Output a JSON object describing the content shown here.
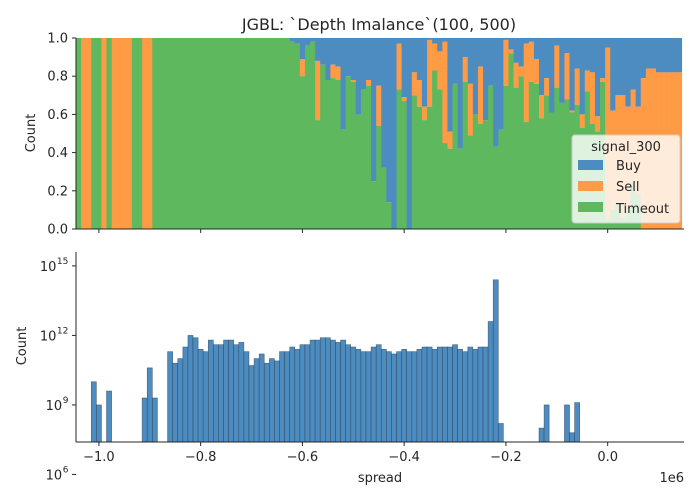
{
  "chart_data": [
    {
      "type": "bar",
      "title": "JGBL: `Depth Imalance`(100, 500)",
      "xlabel": "",
      "ylabel": "Count",
      "ylim": [
        0,
        1.0
      ],
      "yticks": [
        "0.0",
        "0.2",
        "0.4",
        "0.6",
        "0.8",
        "1.0"
      ],
      "stacked_fill": true,
      "legend": {
        "title": "signal_300",
        "placement": "right",
        "entries": [
          {
            "name": "Buy",
            "color": "#4c8cc0"
          },
          {
            "name": "Sell",
            "color": "#ff9a45"
          },
          {
            "name": "Timeout",
            "color": "#5eb85e"
          }
        ]
      },
      "bins": {
        "x_start": -1.045,
        "width": 0.01,
        "count": 119,
        "sell_and_timeout_top": [
          1,
          1,
          1,
          1,
          1,
          1,
          1,
          1,
          1,
          1,
          1,
          1,
          1,
          1,
          1,
          1,
          1,
          1,
          1,
          1,
          1,
          1,
          1,
          1,
          1,
          1,
          1,
          1,
          1,
          1,
          1,
          1,
          1,
          1,
          1,
          1,
          1,
          1,
          1,
          1,
          1,
          1,
          0.98,
          0.97,
          0.89,
          0.96,
          0.98,
          0.88,
          0.86,
          0.78,
          0.86,
          0.85,
          0.52,
          0.8,
          0.78,
          0.6,
          0.73,
          0.78,
          0.25,
          0.75,
          0.32,
          0.14,
          0.0,
          0.97,
          0.69,
          0.0,
          0.82,
          0.78,
          0.64,
          0.99,
          0.97,
          0.93,
          0.98,
          0.51,
          0.76,
          0.42,
          0.9,
          0.76,
          0.6,
          0.85,
          0.57,
          0.75,
          0.43,
          0.52,
          0.99,
          0.94,
          0.87,
          0.85,
          0.97,
          0.98,
          0.89,
          0.7,
          0.79,
          0.61,
          0.96,
          0.66,
          0.92,
          0.62,
          0.84,
          0.6,
          0.83,
          0.82,
          0.59,
          0.79,
          0.95,
          0.62,
          0.7,
          0.7,
          0.64,
          0.73,
          0.64,
          0.79,
          0.84,
          0.84,
          0.82,
          0.82,
          0.82,
          0.82,
          0.82,
          0.82,
          0.82,
          0.82,
          0.82
        ],
        "timeout_top": [
          1,
          0,
          0,
          1,
          1,
          0,
          1,
          0,
          0,
          0,
          0,
          1,
          1,
          0,
          0,
          1,
          1,
          1,
          1,
          1,
          1,
          1,
          1,
          1,
          1,
          1,
          1,
          1,
          1,
          1,
          1,
          1,
          1,
          1,
          1,
          1,
          1,
          1,
          1,
          1,
          1,
          1,
          1.0,
          1.0,
          0.8,
          1.0,
          1.0,
          0.57,
          1.0,
          1.0,
          0.79,
          0.78,
          1.0,
          0.8,
          0.77,
          0.8,
          0.85,
          0.75,
          0.34,
          0.54,
          0.78,
          0.14,
          0.0,
          0.73,
          0.67,
          0.0,
          0.7,
          0.64,
          0.57,
          0.64,
          0.83,
          0.73,
          0.45,
          0.42,
          0.77,
          0.62,
          0.77,
          0.49,
          0.72,
          0.55,
          0.57,
          0.81,
          0.77,
          0.6,
          0.75,
          0.92,
          0.74,
          0.8,
          0.56,
          0.77,
          0.76,
          0.58,
          0.7,
          0.64,
          0.74,
          0.85,
          0.68,
          0.61,
          0.65,
          0.53,
          0.72,
          0.55,
          0.51,
          0.77,
          0.05,
          0.1,
          0.13,
          0.06,
          0.11,
          0.24,
          0.18,
          0.0,
          0.0,
          0.0,
          0.0,
          0.0,
          0.0,
          0.0,
          0.0,
          0.0,
          0.0,
          0.0,
          0.0
        ]
      }
    },
    {
      "type": "bar",
      "title": "",
      "xlabel": "spread",
      "ylabel": "Count",
      "yscale": "log",
      "ylim_log10": [
        7.4,
        15.6
      ],
      "yticks": [
        {
          "base": "10",
          "exp": "6",
          "value": 6
        },
        {
          "base": "10",
          "exp": "9",
          "value": 9
        },
        {
          "base": "10",
          "exp": "12",
          "value": 12
        },
        {
          "base": "10",
          "exp": "15",
          "value": 15
        }
      ],
      "xticks": [
        "−1.0",
        "−0.8",
        "−0.6",
        "−0.4",
        "−0.2",
        "0.0"
      ],
      "xtick_values": [
        -1.0,
        -0.8,
        -0.6,
        -0.4,
        -0.2,
        0.0
      ],
      "xlim": [
        -1.045,
        0.15
      ],
      "x_offset_label": "1e6",
      "color": "#4c8cc0",
      "bins": {
        "x_start": -1.045,
        "width": 0.01,
        "log10_counts": [
          7.4,
          0,
          0,
          10.0,
          9.0,
          0,
          9.6,
          0,
          0,
          0,
          0,
          0,
          0,
          9.3,
          10.6,
          9.3,
          0,
          0,
          11.3,
          10.8,
          11.0,
          11.5,
          12.0,
          11.9,
          11.4,
          11.3,
          11.8,
          11.6,
          11.6,
          11.8,
          11.8,
          11.6,
          11.7,
          11.3,
          10.7,
          11.0,
          11.2,
          10.8,
          11.0,
          10.9,
          11.3,
          11.3,
          11.5,
          11.4,
          11.6,
          11.6,
          11.8,
          11.8,
          11.9,
          11.9,
          11.8,
          11.7,
          11.8,
          11.6,
          11.5,
          11.4,
          11.3,
          11.3,
          11.5,
          11.6,
          11.4,
          11.3,
          11.2,
          11.3,
          11.4,
          11.3,
          11.3,
          11.4,
          11.5,
          11.5,
          11.4,
          11.5,
          11.5,
          11.5,
          11.6,
          11.4,
          11.3,
          11.5,
          11.4,
          11.5,
          11.5,
          12.6,
          14.4,
          8.2,
          6.8,
          5.4,
          5.3,
          5.6,
          5.5,
          5.6,
          7.3,
          8.0,
          9.0,
          6.4,
          5.9,
          5.8,
          9.0,
          7.8,
          9.1
        ]
      }
    }
  ]
}
